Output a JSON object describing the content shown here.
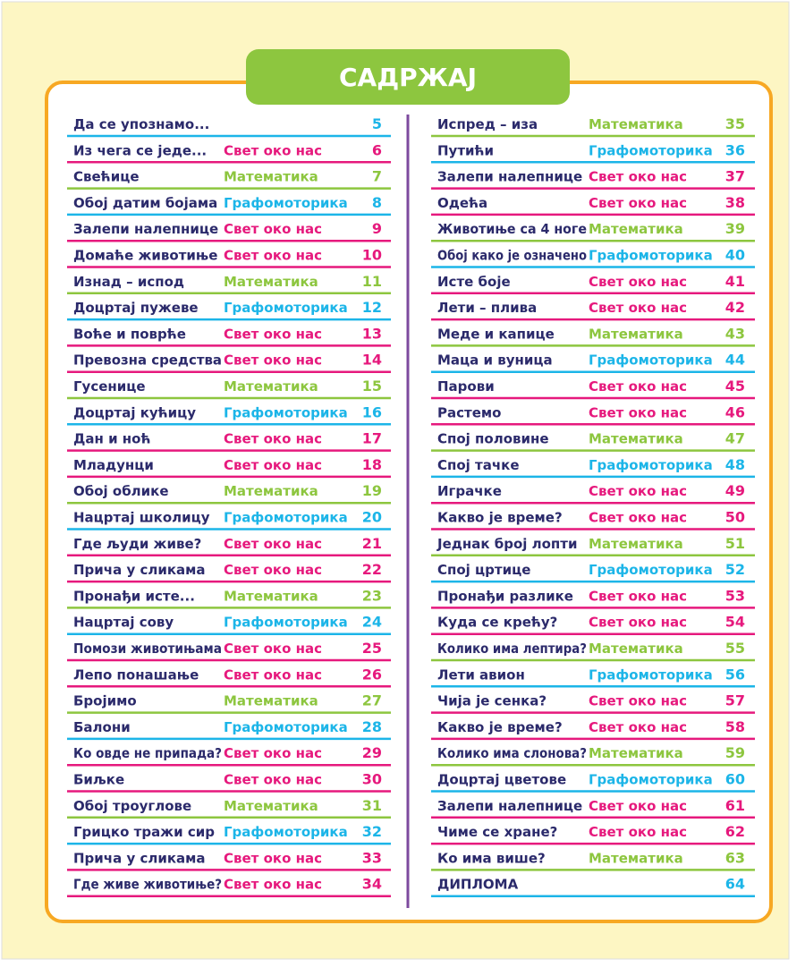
{
  "title": "САДРЖАЈ",
  "columns": [
    {
      "rows": [
        {
          "title": "Да се упознамо...",
          "page": 5,
          "color": "#1cb5e8"
        },
        {
          "title": "Из чега се једе...",
          "subject": "Свет око нас",
          "page": 6,
          "color": "#e6197d"
        },
        {
          "title": "Свећице",
          "subject": "Математика",
          "page": 7,
          "color": "#8dc63f"
        },
        {
          "title": "Обој датим бојама",
          "subject": "Графомоторика",
          "page": 8,
          "color": "#1cb5e8"
        },
        {
          "title": "Залепи налепнице",
          "subject": "Свет око нас",
          "page": 9,
          "color": "#e6197d"
        },
        {
          "title": "Домаће животиње",
          "subject": "Свет око нас",
          "page": 10,
          "color": "#e6197d"
        },
        {
          "title": "Изнад – испод",
          "subject": "Математика",
          "page": 11,
          "color": "#8dc63f"
        },
        {
          "title": "Доцртај пужеве",
          "subject": "Графомоторика",
          "page": 12,
          "color": "#1cb5e8"
        },
        {
          "title": "Воће и поврће",
          "subject": "Свет око нас",
          "page": 13,
          "color": "#e6197d"
        },
        {
          "title": "Превозна средства",
          "subject": "Свет око нас",
          "page": 14,
          "color": "#e6197d"
        },
        {
          "title": "Гусенице",
          "subject": "Математика",
          "page": 15,
          "color": "#8dc63f"
        },
        {
          "title": "Доцртај кућицу",
          "subject": "Графомоторика",
          "page": 16,
          "color": "#1cb5e8"
        },
        {
          "title": "Дан и ноћ",
          "subject": "Свет око нас",
          "page": 17,
          "color": "#e6197d"
        },
        {
          "title": "Младунци",
          "subject": "Свет око нас",
          "page": 18,
          "color": "#e6197d"
        },
        {
          "title": "Обој облике",
          "subject": "Математика",
          "page": 19,
          "color": "#8dc63f"
        },
        {
          "title": "Нацртај школицу",
          "subject": "Графомоторика",
          "page": 20,
          "color": "#1cb5e8"
        },
        {
          "title": "Где људи живе?",
          "subject": "Свет око нас",
          "page": 21,
          "color": "#e6197d"
        },
        {
          "title": "Прича у сликама",
          "subject": "Свет око нас",
          "page": 22,
          "color": "#e6197d"
        },
        {
          "title": "Пронађи исте...",
          "subject": "Математика",
          "page": 23,
          "color": "#8dc63f"
        },
        {
          "title": "Нацртај сову",
          "subject": "Графомоторика",
          "page": 24,
          "color": "#1cb5e8"
        },
        {
          "title": "Помози животињама",
          "subject": "Свет око нас",
          "page": 25,
          "color": "#e6197d"
        },
        {
          "title": "Лепо понашање",
          "subject": "Свет око нас",
          "page": 26,
          "color": "#e6197d"
        },
        {
          "title": "Бројимо",
          "subject": "Математика",
          "page": 27,
          "color": "#8dc63f"
        },
        {
          "title": "Балони",
          "subject": "Графомоторика",
          "page": 28,
          "color": "#1cb5e8"
        },
        {
          "title": "Ко овде не припада?",
          "subject": "Свет око нас",
          "page": 29,
          "color": "#e6197d"
        },
        {
          "title": "Биљке",
          "subject": "Свет око нас",
          "page": 30,
          "color": "#e6197d"
        },
        {
          "title": "Обој троуглове",
          "subject": "Математика",
          "page": 31,
          "color": "#8dc63f"
        },
        {
          "title": "Грицко тражи сир",
          "subject": "Графомоторика",
          "page": 32,
          "color": "#1cb5e8"
        },
        {
          "title": "Прича у сликама",
          "subject": "Свет око нас",
          "page": 33,
          "color": "#e6197d"
        },
        {
          "title": "Где живе животиње?",
          "subject": "Свет око нас",
          "page": 34,
          "color": "#e6197d"
        }
      ]
    },
    {
      "rows": [
        {
          "title": "Испред – иза",
          "subject": "Математика",
          "page": 35,
          "color": "#8dc63f"
        },
        {
          "title": "Путићи",
          "subject": "Графомоторика",
          "page": 36,
          "color": "#1cb5e8"
        },
        {
          "title": "Залепи налепнице",
          "subject": "Свет око нас",
          "page": 37,
          "color": "#e6197d"
        },
        {
          "title": "Одећа",
          "subject": "Свет око нас",
          "page": 38,
          "color": "#e6197d"
        },
        {
          "title": "Животиње са 4 ноге",
          "subject": "Математика",
          "page": 39,
          "color": "#8dc63f"
        },
        {
          "title": "Обој како је означено",
          "subject": "Графомоторика",
          "page": 40,
          "color": "#1cb5e8"
        },
        {
          "title": "Исте боје",
          "subject": "Свет око нас",
          "page": 41,
          "color": "#e6197d"
        },
        {
          "title": "Лети – плива",
          "subject": "Свет око нас",
          "page": 42,
          "color": "#e6197d"
        },
        {
          "title": "Меде и капице",
          "subject": "Математика",
          "page": 43,
          "color": "#8dc63f"
        },
        {
          "title": "Маца и вуница",
          "subject": "Графомоторика",
          "page": 44,
          "color": "#1cb5e8"
        },
        {
          "title": "Парови",
          "subject": "Свет око нас",
          "page": 45,
          "color": "#e6197d"
        },
        {
          "title": "Растемо",
          "subject": "Свет око нас",
          "page": 46,
          "color": "#e6197d"
        },
        {
          "title": "Спој половине",
          "subject": "Математика",
          "page": 47,
          "color": "#8dc63f"
        },
        {
          "title": "Спој тачке",
          "subject": "Графомоторика",
          "page": 48,
          "color": "#1cb5e8"
        },
        {
          "title": "Играчке",
          "subject": "Свет око нас",
          "page": 49,
          "color": "#e6197d"
        },
        {
          "title": "Какво је време?",
          "subject": "Свет око нас",
          "page": 50,
          "color": "#e6197d"
        },
        {
          "title": "Једнак број лопти",
          "subject": "Математика",
          "page": 51,
          "color": "#8dc63f"
        },
        {
          "title": "Спој цртице",
          "subject": "Графомоторика",
          "page": 52,
          "color": "#1cb5e8"
        },
        {
          "title": "Пронађи разлике",
          "subject": "Свет око нас",
          "page": 53,
          "color": "#e6197d"
        },
        {
          "title": "Куда се крећу?",
          "subject": "Свет око нас",
          "page": 54,
          "color": "#e6197d"
        },
        {
          "title": "Колико има лептира?",
          "subject": "Математика",
          "page": 55,
          "color": "#8dc63f"
        },
        {
          "title": "Лети авион",
          "subject": "Графомоторика",
          "page": 56,
          "color": "#1cb5e8"
        },
        {
          "title": "Чија је сенка?",
          "subject": "Свет око нас",
          "page": 57,
          "color": "#e6197d"
        },
        {
          "title": "Какво је време?",
          "subject": "Свет око нас",
          "page": 58,
          "color": "#e6197d"
        },
        {
          "title": "Колико има слонова?",
          "subject": "Математика",
          "page": 59,
          "color": "#8dc63f"
        },
        {
          "title": "Доцртај цветове",
          "subject": "Графомоторика",
          "page": 60,
          "color": "#1cb5e8"
        },
        {
          "title": "Залепи налепнице",
          "subject": "Свет око нас",
          "page": 61,
          "color": "#e6197d"
        },
        {
          "title": "Чиме се хране?",
          "subject": "Свет око нас",
          "page": 62,
          "color": "#e6197d"
        },
        {
          "title": "Ко има више?",
          "subject": "Математика",
          "page": 63,
          "color": "#8dc63f"
        },
        {
          "title": "ДИПЛОМА",
          "page": 64,
          "color": "#1cb5e8"
        }
      ]
    }
  ]
}
